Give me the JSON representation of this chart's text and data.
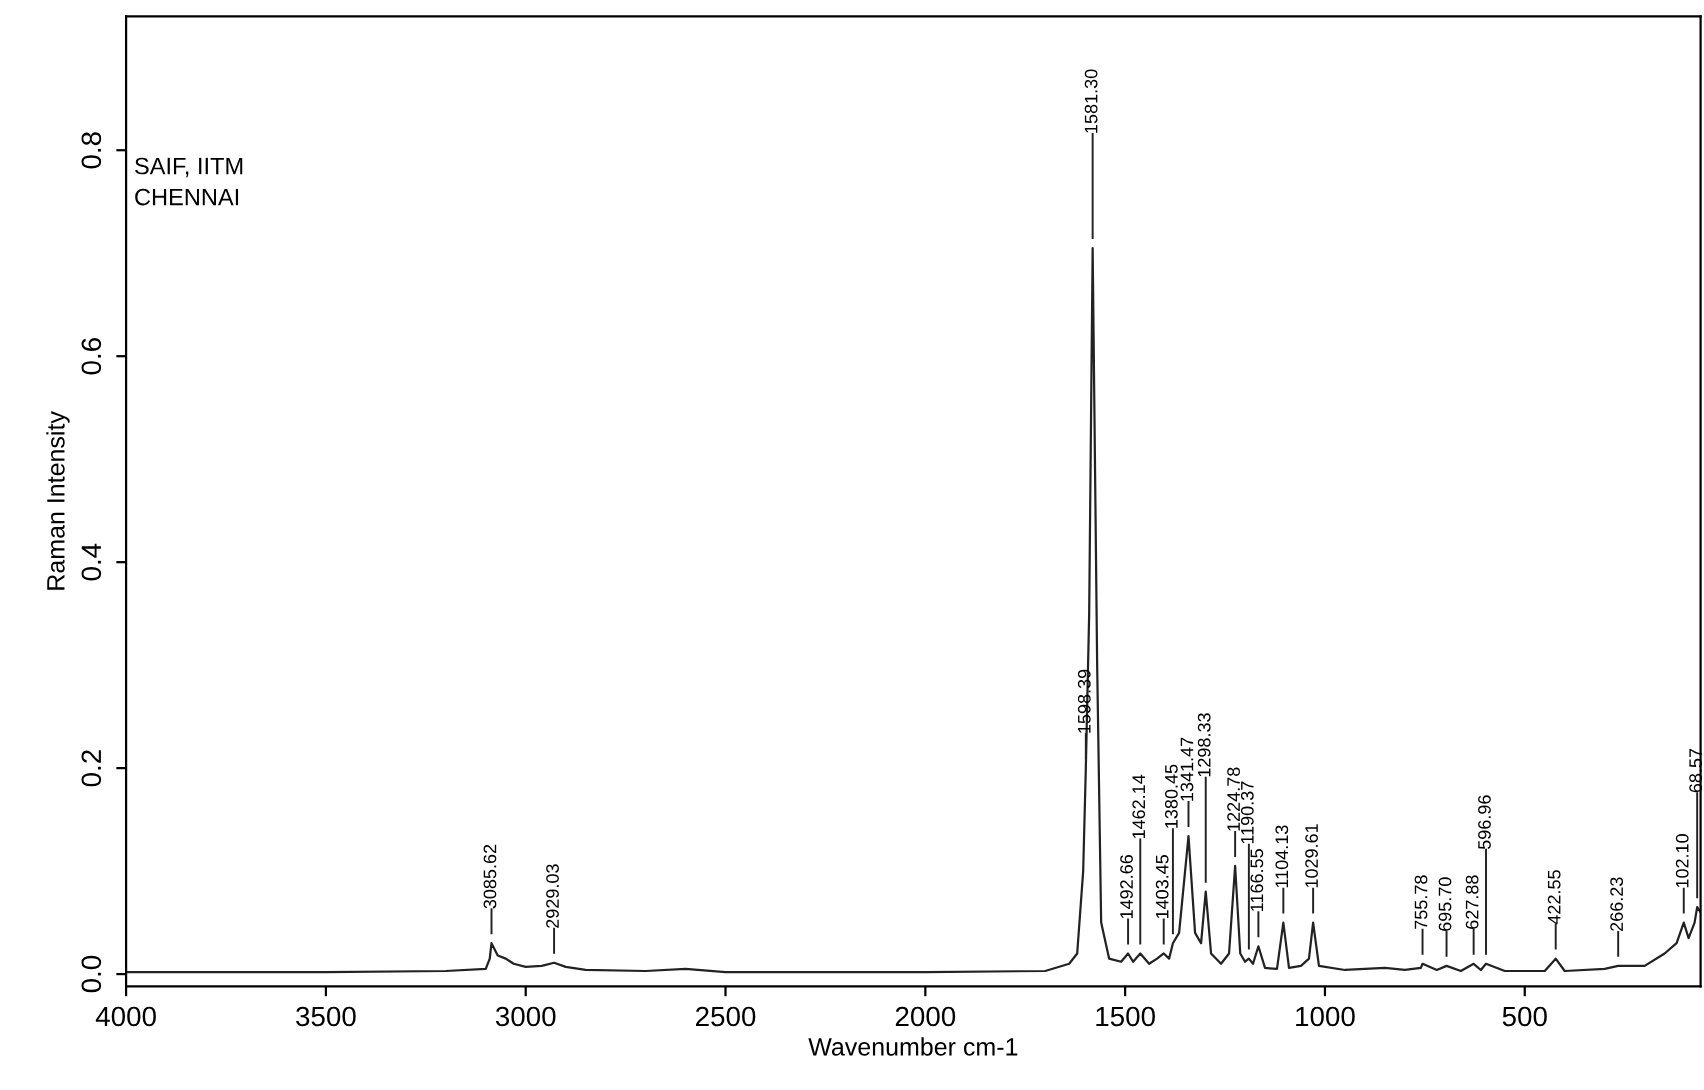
{
  "chart_data": {
    "type": "line",
    "xlabel": "Wavenumber cm-1",
    "ylabel": "Raman Intensity",
    "xlim": [
      4000,
      60
    ],
    "ylim": [
      -0.012,
      0.93
    ],
    "xticks": [
      4000,
      3500,
      3000,
      2500,
      2000,
      1500,
      1000,
      500
    ],
    "yticks": [
      {
        "value": 0,
        "label": "0.0"
      },
      0.2,
      0.4,
      0.6,
      0.8
    ],
    "grid": false,
    "legend": false,
    "marker": "none",
    "line_style": "solid",
    "series": [
      {
        "color": "#222222",
        "x": [
          4000,
          3500,
          3200,
          3100,
          3090,
          3085.62,
          3070,
          3050,
          3030,
          3000,
          2960,
          2929.03,
          2900,
          2850,
          2700,
          2600,
          2500,
          2000,
          1700,
          1640,
          1620,
          1605,
          1598.39,
          1590,
          1581.3,
          1570,
          1560,
          1540,
          1510,
          1492.66,
          1480,
          1462.14,
          1440,
          1420,
          1403.45,
          1390,
          1380.45,
          1365,
          1341.47,
          1325,
          1310,
          1298.33,
          1285,
          1260,
          1240,
          1224.78,
          1212,
          1200,
          1190.37,
          1180,
          1166.55,
          1150,
          1120,
          1104.13,
          1090,
          1060,
          1040,
          1029.61,
          1015,
          950,
          850,
          800,
          760,
          755.78,
          720,
          695.7,
          660,
          627.88,
          610,
          596.96,
          550,
          450,
          422.55,
          400,
          300,
          266.23,
          200,
          150,
          120,
          102.1,
          90,
          75,
          68.57,
          60
        ],
        "values": [
          0.002,
          0.002,
          0.003,
          0.005,
          0.015,
          0.03,
          0.018,
          0.015,
          0.01,
          0.007,
          0.008,
          0.011,
          0.007,
          0.004,
          0.003,
          0.005,
          0.002,
          0.002,
          0.003,
          0.01,
          0.02,
          0.1,
          0.2,
          0.35,
          0.705,
          0.3,
          0.05,
          0.015,
          0.012,
          0.02,
          0.012,
          0.02,
          0.01,
          0.015,
          0.02,
          0.015,
          0.03,
          0.04,
          0.134,
          0.04,
          0.03,
          0.08,
          0.02,
          0.01,
          0.02,
          0.105,
          0.02,
          0.012,
          0.015,
          0.01,
          0.027,
          0.006,
          0.005,
          0.05,
          0.006,
          0.008,
          0.015,
          0.05,
          0.008,
          0.004,
          0.006,
          0.004,
          0.006,
          0.01,
          0.004,
          0.008,
          0.003,
          0.01,
          0.004,
          0.01,
          0.003,
          0.003,
          0.015,
          0.003,
          0.005,
          0.008,
          0.008,
          0.02,
          0.03,
          0.05,
          0.035,
          0.05,
          0.065,
          0.06
        ]
      }
    ],
    "annotations": [
      "SAIF, IITM",
      "CHENNAI",
      {
        "text": "3085.62",
        "x": 3085.62,
        "y": 0.03
      },
      {
        "text": "2929.03",
        "x": 2929.03,
        "y": 0.011
      },
      {
        "text": "1598.39",
        "x": 1598.39,
        "y": 0.2
      },
      {
        "text": "1581.30",
        "x": 1581.3,
        "y": 0.705
      },
      {
        "text": "1492.66",
        "x": 1492.66,
        "y": 0.02
      },
      {
        "text": "1462.14",
        "x": 1462.14,
        "y": 0.02
      },
      {
        "text": "1403.45",
        "x": 1403.45,
        "y": 0.02
      },
      {
        "text": "1380.45",
        "x": 1380.45,
        "y": 0.03
      },
      {
        "text": "1341.47",
        "x": 1341.47,
        "y": 0.134
      },
      {
        "text": "1298.33",
        "x": 1298.33,
        "y": 0.08
      },
      {
        "text": "1224.78",
        "x": 1224.78,
        "y": 0.105
      },
      {
        "text": "1190.37",
        "x": 1190.37,
        "y": 0.015
      },
      {
        "text": "1166.55",
        "x": 1166.55,
        "y": 0.027
      },
      {
        "text": "1104.13",
        "x": 1104.13,
        "y": 0.05
      },
      {
        "text": "1029.61",
        "x": 1029.61,
        "y": 0.05
      },
      {
        "text": "755.78",
        "x": 755.78,
        "y": 0.01
      },
      {
        "text": "695.70",
        "x": 695.7,
        "y": 0.008
      },
      {
        "text": "627.88",
        "x": 627.88,
        "y": 0.01
      },
      {
        "text": "596.96",
        "x": 596.96,
        "y": 0.01
      },
      {
        "text": "422.55",
        "x": 422.55,
        "y": 0.015
      },
      {
        "text": "266.23",
        "x": 266.23,
        "y": 0.008
      },
      {
        "text": "102.10",
        "x": 102.1,
        "y": 0.05
      },
      {
        "text": "68.57",
        "x": 68.57,
        "y": 0.065
      }
    ]
  }
}
